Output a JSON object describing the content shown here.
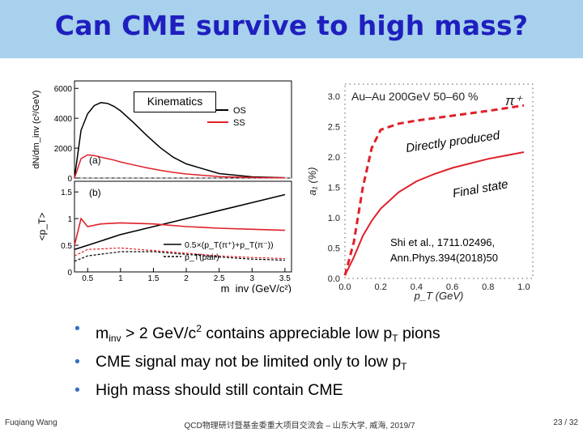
{
  "slide": {
    "title": "Can CME survive to high mass?",
    "kinematics_label": "Kinematics",
    "bullets": [
      {
        "pre": "m",
        "sub": "inv",
        "mid": " > 2 GeV/c",
        "sup": "2",
        "post": " contains appreciable low p",
        "sub2": "T",
        "post2": " pions"
      },
      {
        "pre": "CME signal may not be limited only to low p",
        "sub": "T"
      },
      {
        "pre": "High mass should still contain CME"
      }
    ],
    "footer": {
      "author": "Fuqiang Wang",
      "event": "QCD物理研讨暨基金委重大项目交流会 – 山东大学, 威海, 2019/7",
      "page": "23 / 32"
    }
  },
  "left_chart": {
    "top_panel": {
      "ylabel": "dN/dm_inv (c²/GeV)",
      "y_ticks": [
        "6000",
        "4000",
        "2000",
        "0"
      ],
      "legend": [
        "OS",
        "SS"
      ],
      "panel_tag": "(a)"
    },
    "bottom_panel": {
      "ylabel": "<p_T>",
      "y_ticks": [
        "1.5",
        "1",
        "0.5",
        "0"
      ],
      "legend": [
        "0.5×(p_T(π⁺)+p_T(π⁻))",
        "p_T(pair)"
      ],
      "panel_tag": "(b)"
    },
    "x_ticks": [
      "0.5",
      "1",
      "1.5",
      "2",
      "2.5",
      "3",
      "3.5"
    ],
    "xlabel": "m_inv (GeV/c²)"
  },
  "chart_data": [
    {
      "type": "line",
      "title": "",
      "xlabel": "m_inv (GeV/c²)",
      "ylabel": "dN/dm_inv (c²/GeV)",
      "xlim": [
        0.3,
        3.6
      ],
      "ylim": [
        0,
        6500
      ],
      "series": [
        {
          "name": "OS",
          "color": "#000000",
          "x": [
            0.3,
            0.4,
            0.5,
            0.6,
            0.7,
            0.8,
            0.9,
            1.0,
            1.2,
            1.4,
            1.6,
            1.8,
            2.0,
            2.5,
            3.0,
            3.5
          ],
          "y": [
            0,
            3200,
            4300,
            4850,
            5050,
            5000,
            4800,
            4500,
            3700,
            2850,
            2050,
            1400,
            950,
            300,
            80,
            20
          ]
        },
        {
          "name": "SS",
          "color": "#e0202a",
          "x": [
            0.3,
            0.4,
            0.5,
            0.6,
            0.7,
            0.8,
            0.9,
            1.0,
            1.2,
            1.4,
            1.6,
            1.8,
            2.0,
            2.5,
            3.0,
            3.5
          ],
          "y": [
            0,
            1300,
            1550,
            1500,
            1400,
            1300,
            1200,
            1080,
            880,
            680,
            520,
            380,
            270,
            100,
            30,
            10
          ]
        }
      ]
    },
    {
      "type": "line",
      "title": "",
      "xlabel": "m_inv (GeV/c²)",
      "ylabel": "<p_T>",
      "xlim": [
        0.3,
        3.6
      ],
      "ylim": [
        0,
        1.7
      ],
      "series": [
        {
          "name": "OS 0.5×(pT(π⁺)+pT(π⁻))",
          "color": "#000000",
          "x": [
            0.3,
            0.5,
            1.0,
            1.5,
            2.0,
            2.5,
            3.0,
            3.5
          ],
          "y": [
            0.42,
            0.5,
            0.7,
            0.85,
            1.0,
            1.15,
            1.3,
            1.45
          ]
        },
        {
          "name": "SS 0.5×(pT(π⁺)+pT(π⁻))",
          "color": "#e0202a",
          "x": [
            0.3,
            0.4,
            0.5,
            0.7,
            1.0,
            1.5,
            2.0,
            2.5,
            3.0,
            3.5
          ],
          "y": [
            0.5,
            1.0,
            0.85,
            0.9,
            0.92,
            0.9,
            0.85,
            0.82,
            0.8,
            0.78
          ]
        },
        {
          "name": "OS pT(pair)",
          "color": "#000000",
          "x": [
            0.3,
            0.5,
            1.0,
            1.5,
            2.0,
            2.5,
            3.0,
            3.5
          ],
          "y": [
            0.2,
            0.3,
            0.38,
            0.38,
            0.33,
            0.28,
            0.24,
            0.22
          ]
        },
        {
          "name": "SS pT(pair)",
          "color": "#e0202a",
          "x": [
            0.3,
            0.5,
            1.0,
            1.5,
            2.0,
            2.5,
            3.0,
            3.5
          ],
          "y": [
            0.3,
            0.42,
            0.45,
            0.4,
            0.35,
            0.3,
            0.27,
            0.25
          ]
        }
      ]
    },
    {
      "type": "line",
      "title": "Au–Au 200GeV 50–60 %",
      "particle": "π⁺",
      "xlabel": "p_T (GeV)",
      "ylabel": "a₁ (%)",
      "xlim": [
        0,
        1.05
      ],
      "ylim": [
        0,
        3.2
      ],
      "x_ticks": [
        "0.0",
        "0.2",
        "0.4",
        "0.6",
        "0.8",
        "1.0"
      ],
      "y_ticks": [
        "0.0",
        "0.5",
        "1.0",
        "1.5",
        "2.0",
        "2.5",
        "3.0"
      ],
      "annotations": [
        "Directly produced",
        "Final state",
        "Shi et al., 1711.02496,",
        "Ann.Phys.394(2018)50"
      ],
      "series": [
        {
          "name": "Directly produced",
          "color": "#e0202a",
          "dashed": true,
          "x": [
            0.0,
            0.05,
            0.1,
            0.15,
            0.2,
            0.3,
            0.4,
            0.6,
            0.8,
            1.0
          ],
          "y": [
            0.05,
            0.6,
            1.5,
            2.15,
            2.45,
            2.55,
            2.6,
            2.68,
            2.76,
            2.85
          ]
        },
        {
          "name": "Final state",
          "color": "#e0202a",
          "dashed": false,
          "x": [
            0.0,
            0.05,
            0.1,
            0.15,
            0.2,
            0.3,
            0.4,
            0.5,
            0.6,
            0.8,
            1.0
          ],
          "y": [
            0.05,
            0.35,
            0.7,
            0.95,
            1.15,
            1.42,
            1.6,
            1.72,
            1.82,
            1.97,
            2.08
          ]
        }
      ]
    }
  ]
}
